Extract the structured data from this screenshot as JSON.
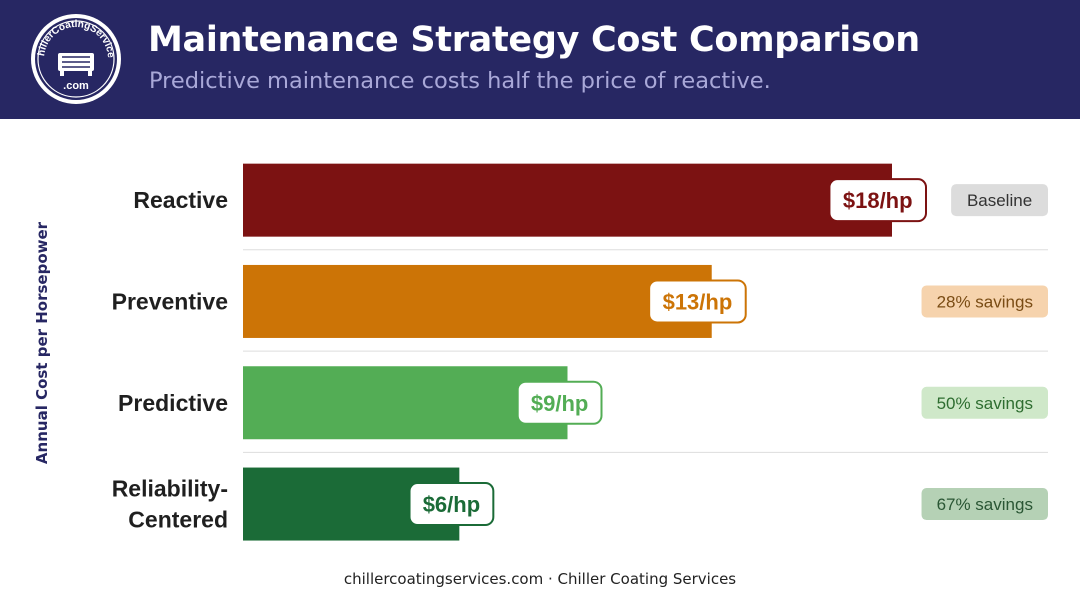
{
  "header": {
    "title": "Maintenance Strategy Cost Comparison",
    "subtitle": "Predictive maintenance costs half the price of reactive.",
    "logo_text_top": "ChillerCoatingServices",
    "logo_text_bottom": ".com"
  },
  "chart_data": {
    "type": "bar",
    "orientation": "horizontal",
    "ylabel": "Annual Cost per Horsepower",
    "xlim": [
      0,
      18
    ],
    "categories": [
      "Reactive",
      "Preventive",
      "Predictive",
      "Reliability-Centered"
    ],
    "category_lines": [
      [
        "Reactive"
      ],
      [
        "Preventive"
      ],
      [
        "Predictive"
      ],
      [
        "Reliability-",
        "Centered"
      ]
    ],
    "values": [
      18,
      13,
      9,
      6
    ],
    "value_labels": [
      "$18/hp",
      "$13/hp",
      "$9/hp",
      "$6/hp"
    ],
    "savings_labels": [
      "Baseline",
      "28% savings",
      "50% savings",
      "67% savings"
    ],
    "colors": [
      "#7c1212",
      "#cc7406",
      "#53ad55",
      "#1b6b37"
    ],
    "badge_backgrounds": [
      "#dcdcdc",
      "#f6d3ad",
      "#cfe8c9",
      "#b5d1b5"
    ],
    "badge_text_colors": [
      "#333333",
      "#7a4c14",
      "#2e6d30",
      "#2a5634"
    ]
  },
  "footer": {
    "text": "chillercoatingservices.com · Chiller Coating Services"
  }
}
